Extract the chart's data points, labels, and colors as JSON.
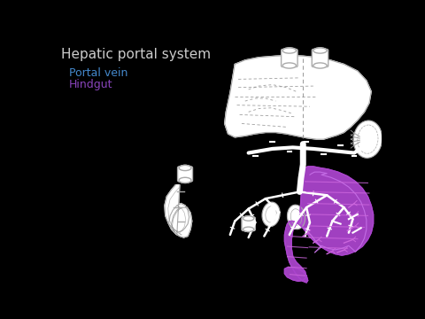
{
  "title": "Hepatic portal system",
  "legend_items": [
    {
      "label": "Portal vein",
      "color": "#4488cc"
    },
    {
      "label": "Hindgut",
      "color": "#8844bb"
    }
  ],
  "background_color": "#000000",
  "title_color": "#cccccc",
  "title_fontsize": 11,
  "legend_fontsize": 9,
  "organ_fill": "#ffffff",
  "organ_edge": "#aaaaaa",
  "hindgut_fill": "#aa44cc",
  "vein_color": "#ffffff",
  "dashed_color": "#888888"
}
